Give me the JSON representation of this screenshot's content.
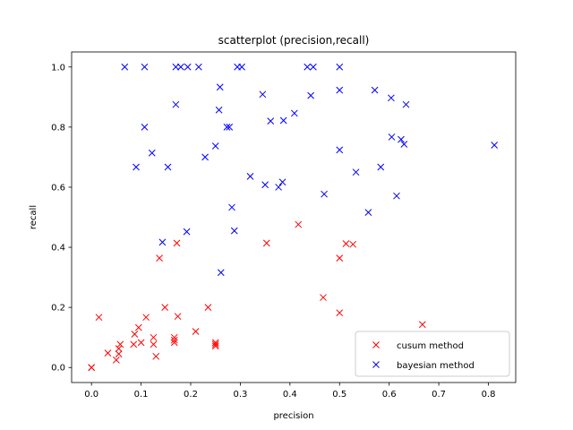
{
  "chart_data": {
    "type": "scatter",
    "title": "scatterplot (precision,recall)",
    "xlabel": "precision",
    "ylabel": "recall",
    "xlim": [
      -0.04,
      0.855
    ],
    "ylim": [
      -0.05,
      1.05
    ],
    "xticks": [
      0.0,
      0.1,
      0.2,
      0.3,
      0.4,
      0.5,
      0.6,
      0.7,
      0.8
    ],
    "xtick_labels": [
      "0.0",
      "0.1",
      "0.2",
      "0.3",
      "0.4",
      "0.5",
      "0.6",
      "0.7",
      "0.8"
    ],
    "yticks": [
      0.0,
      0.2,
      0.4,
      0.6,
      0.8,
      1.0
    ],
    "ytick_labels": [
      "0.0",
      "0.2",
      "0.4",
      "0.6",
      "0.8",
      "1.0"
    ],
    "grid": false,
    "marker": "x",
    "legend": {
      "placement": "lower-right"
    },
    "series": [
      {
        "name": "cusum method",
        "color": "#ff0000",
        "points": [
          [
            0.0,
            0.0
          ],
          [
            0.0,
            0.0
          ],
          [
            0.015,
            0.167
          ],
          [
            0.033,
            0.048
          ],
          [
            0.05,
            0.025
          ],
          [
            0.055,
            0.045
          ],
          [
            0.055,
            0.063
          ],
          [
            0.058,
            0.077
          ],
          [
            0.085,
            0.077
          ],
          [
            0.087,
            0.111
          ],
          [
            0.095,
            0.133
          ],
          [
            0.1,
            0.083
          ],
          [
            0.11,
            0.167
          ],
          [
            0.125,
            0.1
          ],
          [
            0.125,
            0.077
          ],
          [
            0.13,
            0.037
          ],
          [
            0.137,
            0.364
          ],
          [
            0.148,
            0.2
          ],
          [
            0.167,
            0.1
          ],
          [
            0.167,
            0.083
          ],
          [
            0.167,
            0.091
          ],
          [
            0.172,
            0.414
          ],
          [
            0.174,
            0.17
          ],
          [
            0.21,
            0.12
          ],
          [
            0.235,
            0.2
          ],
          [
            0.25,
            0.083
          ],
          [
            0.25,
            0.077
          ],
          [
            0.25,
            0.071
          ],
          [
            0.353,
            0.414
          ],
          [
            0.417,
            0.476
          ],
          [
            0.467,
            0.233
          ],
          [
            0.5,
            0.364
          ],
          [
            0.5,
            0.182
          ],
          [
            0.513,
            0.412
          ],
          [
            0.527,
            0.41
          ],
          [
            0.667,
            0.143
          ]
        ]
      },
      {
        "name": "bayesian method",
        "color": "#0000ff",
        "points": [
          [
            0.067,
            1.0
          ],
          [
            0.107,
            1.0
          ],
          [
            0.17,
            1.0
          ],
          [
            0.18,
            1.0
          ],
          [
            0.194,
            1.0
          ],
          [
            0.216,
            1.0
          ],
          [
            0.294,
            1.0
          ],
          [
            0.303,
            1.0
          ],
          [
            0.435,
            1.0
          ],
          [
            0.447,
            1.0
          ],
          [
            0.5,
            1.0
          ],
          [
            0.259,
            0.933
          ],
          [
            0.345,
            0.909
          ],
          [
            0.442,
            0.905
          ],
          [
            0.5,
            0.923
          ],
          [
            0.571,
            0.923
          ],
          [
            0.604,
            0.897
          ],
          [
            0.634,
            0.875
          ],
          [
            0.17,
            0.875
          ],
          [
            0.257,
            0.857
          ],
          [
            0.409,
            0.846
          ],
          [
            0.361,
            0.82
          ],
          [
            0.387,
            0.822
          ],
          [
            0.107,
            0.8
          ],
          [
            0.273,
            0.8
          ],
          [
            0.278,
            0.8
          ],
          [
            0.605,
            0.767
          ],
          [
            0.624,
            0.759
          ],
          [
            0.63,
            0.743
          ],
          [
            0.812,
            0.74
          ],
          [
            0.5,
            0.724
          ],
          [
            0.122,
            0.714
          ],
          [
            0.25,
            0.737
          ],
          [
            0.229,
            0.7
          ],
          [
            0.09,
            0.667
          ],
          [
            0.154,
            0.667
          ],
          [
            0.583,
            0.667
          ],
          [
            0.533,
            0.65
          ],
          [
            0.32,
            0.636
          ],
          [
            0.35,
            0.608
          ],
          [
            0.377,
            0.6
          ],
          [
            0.385,
            0.617
          ],
          [
            0.469,
            0.577
          ],
          [
            0.615,
            0.571
          ],
          [
            0.558,
            0.516
          ],
          [
            0.283,
            0.533
          ],
          [
            0.288,
            0.455
          ],
          [
            0.192,
            0.452
          ],
          [
            0.143,
            0.417
          ],
          [
            0.261,
            0.316
          ]
        ]
      }
    ]
  }
}
